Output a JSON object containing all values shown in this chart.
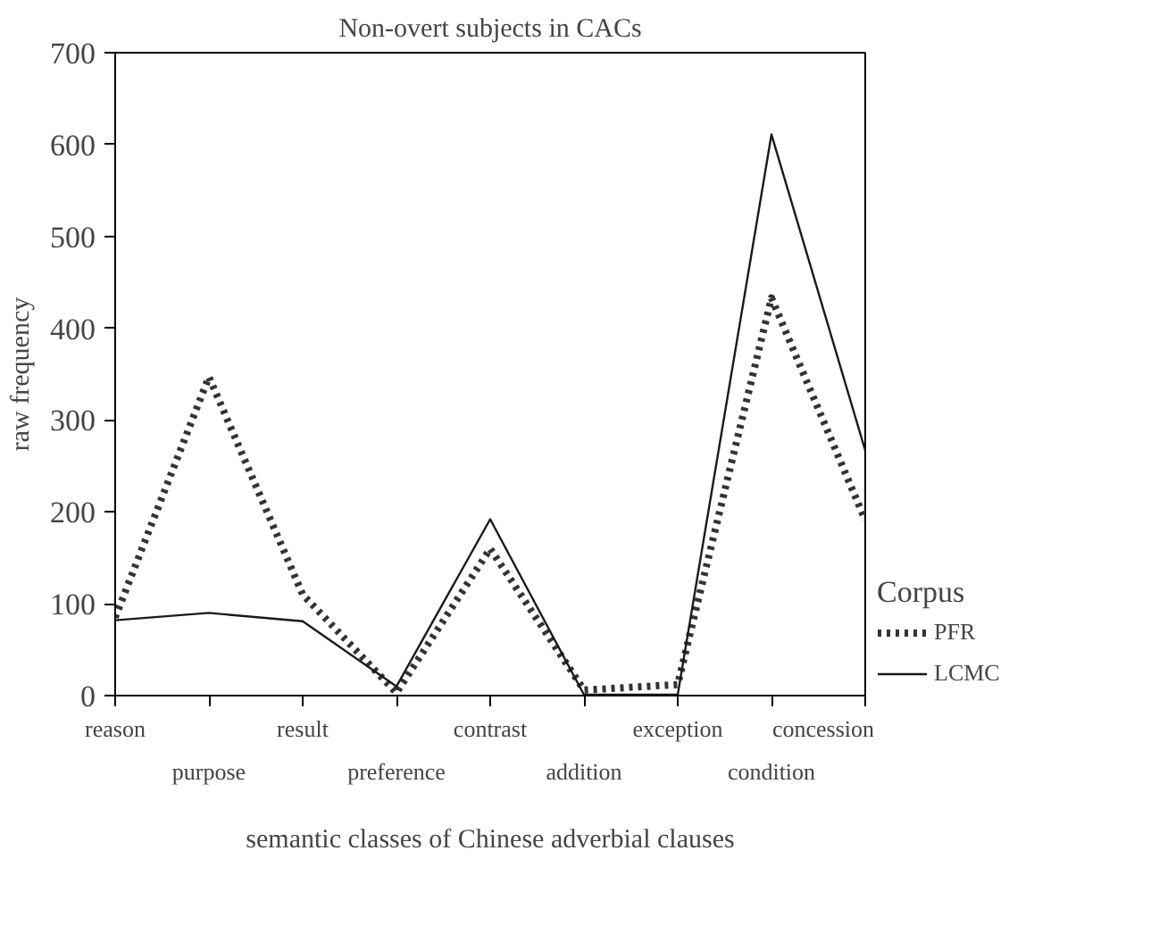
{
  "chart_data": {
    "type": "line",
    "title": "Non-overt subjects in CACs",
    "xlabel": "semantic classes of Chinese adverbial clauses",
    "ylabel": "raw frequency",
    "categories": [
      "reason",
      "purpose",
      "result",
      "preference",
      "contrast",
      "addition",
      "exception",
      "condition",
      "concession"
    ],
    "series": [
      {
        "name": "PFR",
        "color": "#333333",
        "line_style": "dotted",
        "values": [
          85,
          347,
          110,
          3,
          160,
          6,
          12,
          433,
          191
        ]
      },
      {
        "name": "LCMC",
        "color": "#1a1a1a",
        "line_style": "solid",
        "values": [
          82,
          90,
          81,
          10,
          192,
          1,
          1,
          611,
          267
        ]
      }
    ],
    "legend_title": "Corpus",
    "legend": "right",
    "ylim": [
      0,
      700
    ],
    "yticks": [
      0,
      100,
      200,
      300,
      400,
      500,
      600,
      700
    ],
    "grid": false
  }
}
